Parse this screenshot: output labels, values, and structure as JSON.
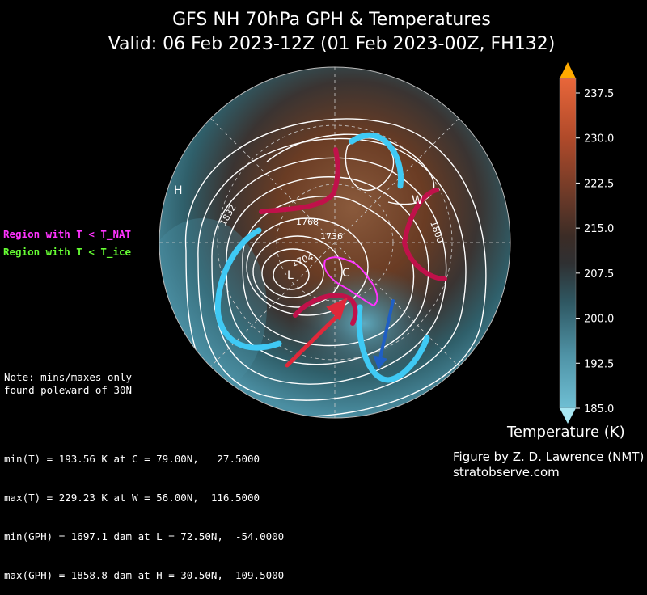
{
  "title": {
    "line1": "GFS NH 70hPa GPH & Temperatures",
    "line2": "Valid: 06 Feb 2023-12Z  (01 Feb 2023-00Z, FH132)"
  },
  "legend": {
    "nat": "Region with T < T_NAT",
    "ice": "Region with T < T_ice",
    "nat_color": "#ff33ff",
    "ice_color": "#66ff33"
  },
  "note": "Note: mins/maxes only\nfound poleward of 30N",
  "stats": [
    "min(T) = 193.56 K at C = 79.00N,   27.5000",
    "max(T) = 229.23 K at W = 56.00N,  116.5000",
    "min(GPH) = 1697.1 dam at L = 72.50N,  -54.0000",
    "max(GPH) = 1858.8 dam at H = 30.50N, -109.5000"
  ],
  "credit": {
    "line1": "Figure by Z. D. Lawrence (NMT)",
    "line2": "stratobserve.com"
  },
  "colorbar": {
    "label": "Temperature (K)",
    "ticks": [
      "237.5",
      "230.0",
      "222.5",
      "215.0",
      "207.5",
      "200.0",
      "192.5",
      "185.0"
    ],
    "min": 185.0,
    "max": 237.5
  },
  "map_labels": {
    "H": "H",
    "L": "L",
    "C": "C",
    "W": "W",
    "contours": [
      "1832",
      "1768",
      "1736",
      "1704",
      "1800"
    ]
  }
}
